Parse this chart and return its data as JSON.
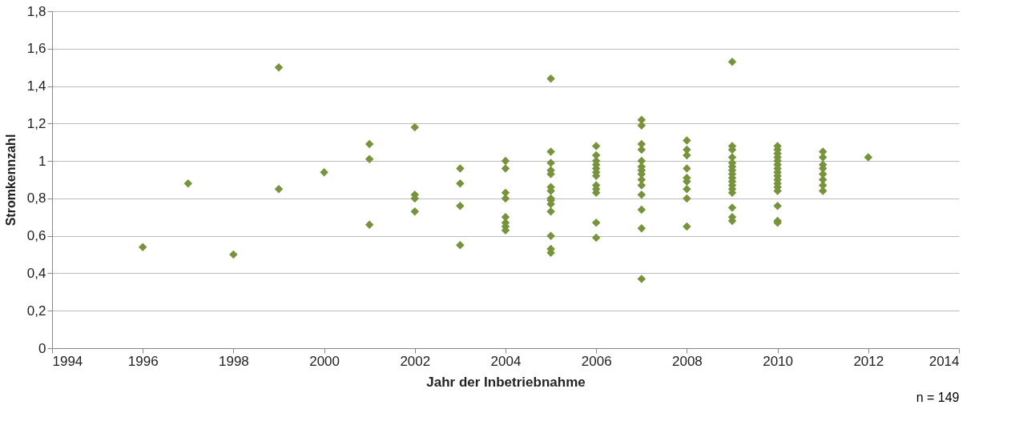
{
  "chart_data": {
    "type": "scatter",
    "xlabel": "Jahr der Inbetriebnahme",
    "ylabel": "Stromkennzahl",
    "annotations": [
      "n = 149"
    ],
    "xlim": [
      1994,
      2014
    ],
    "xticks": [
      1994,
      1996,
      1998,
      2000,
      2002,
      2004,
      2006,
      2008,
      2010,
      2012,
      2014
    ],
    "ylim": [
      0,
      1.8
    ],
    "yticks": [
      0,
      {
        "value": 0.2,
        "label": "0,2"
      },
      {
        "value": 0.4,
        "label": "0,4"
      },
      {
        "value": 0.6,
        "label": "0,6"
      },
      {
        "value": 0.8,
        "label": "0,8"
      },
      1,
      {
        "value": 1.2,
        "label": "1,2"
      },
      {
        "value": 1.4,
        "label": "1,4"
      },
      {
        "value": 1.6,
        "label": "1,6"
      },
      {
        "value": 1.8,
        "label": "1,8"
      }
    ],
    "grid": "y",
    "marker": "diamond",
    "legend": false,
    "series": [
      {
        "color": "#77933c",
        "x": [
          1996,
          1997,
          1998,
          1999,
          1999,
          2000,
          2001,
          2001,
          2001,
          2002,
          2002,
          2002,
          2002,
          2003,
          2003,
          2003,
          2003,
          2004,
          2004,
          2004,
          2004,
          2004,
          2004,
          2004,
          2004,
          2005,
          2005,
          2005,
          2005,
          2005,
          2005,
          2005,
          2005,
          2005,
          2005,
          2005,
          2005,
          2005,
          2005,
          2006,
          2006,
          2006,
          2006,
          2006,
          2006,
          2006,
          2006,
          2006,
          2006,
          2006,
          2006,
          2007,
          2007,
          2007,
          2007,
          2007,
          2007,
          2007,
          2007,
          2007,
          2007,
          2007,
          2007,
          2007,
          2007,
          2008,
          2008,
          2008,
          2008,
          2008,
          2008,
          2008,
          2008,
          2008,
          2009,
          2009,
          2009,
          2009,
          2009,
          2009,
          2009,
          2009,
          2009,
          2009,
          2009,
          2009,
          2009,
          2009,
          2009,
          2009,
          2010,
          2010,
          2010,
          2010,
          2010,
          2010,
          2010,
          2010,
          2010,
          2010,
          2010,
          2010,
          2010,
          2010,
          2010,
          2010,
          2011,
          2011,
          2011,
          2011,
          2011,
          2011,
          2011,
          2011,
          2012
        ],
        "values": [
          0.54,
          0.88,
          0.5,
          1.5,
          0.85,
          0.94,
          1.09,
          1.01,
          0.66,
          1.18,
          0.82,
          0.8,
          0.73,
          0.96,
          0.88,
          0.76,
          0.55,
          1.0,
          0.96,
          0.83,
          0.8,
          0.7,
          0.67,
          0.65,
          0.63,
          1.44,
          1.05,
          0.99,
          0.95,
          0.93,
          0.86,
          0.84,
          0.8,
          0.79,
          0.77,
          0.73,
          0.6,
          0.53,
          0.51,
          1.08,
          1.03,
          1.0,
          0.98,
          0.96,
          0.94,
          0.92,
          0.87,
          0.85,
          0.83,
          0.67,
          0.59,
          1.22,
          1.19,
          1.09,
          1.06,
          1.0,
          0.97,
          0.95,
          0.93,
          0.9,
          0.87,
          0.82,
          0.74,
          0.64,
          0.37,
          1.11,
          1.06,
          1.03,
          0.96,
          0.91,
          0.89,
          0.85,
          0.8,
          0.65,
          1.53,
          1.08,
          1.06,
          1.02,
          0.99,
          0.97,
          0.95,
          0.93,
          0.91,
          0.89,
          0.87,
          0.85,
          0.83,
          0.75,
          0.7,
          0.68,
          1.08,
          1.06,
          1.04,
          1.02,
          1.0,
          0.98,
          0.96,
          0.94,
          0.92,
          0.9,
          0.88,
          0.86,
          0.84,
          0.76,
          0.68,
          0.67,
          1.05,
          1.02,
          0.98,
          0.96,
          0.93,
          0.9,
          0.87,
          0.84,
          1.02
        ]
      }
    ]
  }
}
